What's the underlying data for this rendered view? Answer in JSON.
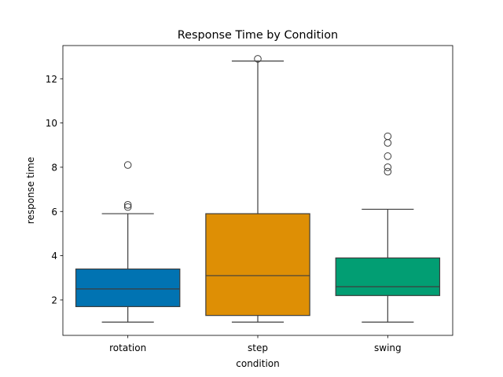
{
  "chart_data": {
    "type": "box",
    "title": "Response Time by Condition",
    "xlabel": "condition",
    "ylabel": "response time",
    "ylim": [
      0.4,
      13.5
    ],
    "yticks": [
      2,
      4,
      6,
      8,
      10,
      12
    ],
    "grid": false,
    "categories": [
      "rotation",
      "step",
      "swing"
    ],
    "boxes": [
      {
        "category": "rotation",
        "color": "#0173b2",
        "whisker_low": 1.0,
        "q1": 1.7,
        "median": 2.5,
        "q3": 3.4,
        "whisker_high": 5.9,
        "outliers": [
          6.2,
          6.3,
          8.1
        ]
      },
      {
        "category": "step",
        "color": "#de8f05",
        "whisker_low": 1.0,
        "q1": 1.3,
        "median": 3.1,
        "q3": 5.9,
        "whisker_high": 12.8,
        "outliers": [
          12.9
        ]
      },
      {
        "category": "swing",
        "color": "#029e73",
        "whisker_low": 1.0,
        "q1": 2.2,
        "median": 2.6,
        "q3": 3.9,
        "whisker_high": 6.1,
        "outliers": [
          7.8,
          8.0,
          8.5,
          9.1,
          9.4
        ]
      }
    ]
  }
}
